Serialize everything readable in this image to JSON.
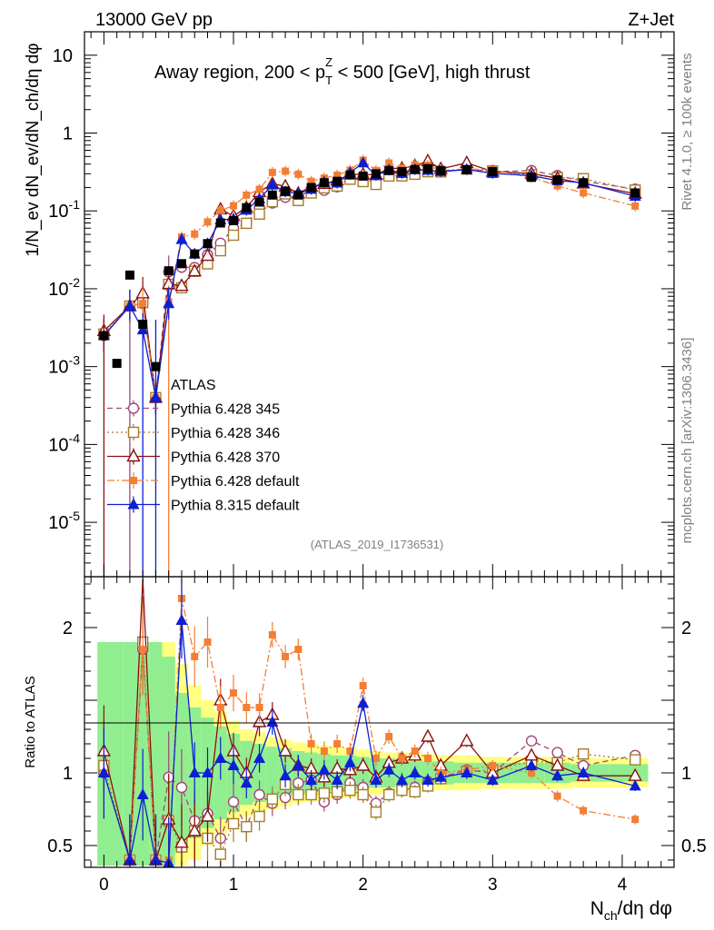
{
  "header": {
    "left": "13000 GeV pp",
    "right": "Z+Jet"
  },
  "title_parts": {
    "pre": "Away region, 200 < p",
    "sup": "Z",
    "sub": "T",
    "post": " < 500 [GeV], high thrust"
  },
  "side_text": {
    "rivet": "Rivet 4.1.0, ≥ 100k events",
    "mcplots": "mcplots.cern.ch [arXiv:1306.3436]"
  },
  "watermark": "(ATLAS_2019_I1736531)",
  "labels": {
    "upper_y": "1/N_ev dN_ev/dN_ch/dη dφ",
    "ratio_y": "Ratio to ATLAS",
    "x_main": "N",
    "x_sub": "ch",
    "x_tail": "/dη dφ"
  },
  "colors": {
    "atlas": "#000000",
    "p345": "#a0467a",
    "p346": "#a67c2a",
    "p370": "#8b1010",
    "pdef": "#f37e34",
    "p8": "#0b1fd6",
    "band_green": "#90ee90",
    "band_yellow": "#ffff80"
  },
  "chart_data": {
    "type": "scatter",
    "x_ticks": [
      "0",
      "1",
      "2",
      "3",
      "4"
    ],
    "xlim": [
      -0.15,
      4.4
    ],
    "upper": {
      "yscale": "log",
      "ylim": [
        2e-06,
        20
      ],
      "y_tick_labels": [
        "10",
        "1",
        "10^-1",
        "10^-2",
        "10^-3",
        "10^-4",
        "10^-5"
      ]
    },
    "ratio": {
      "ylim": [
        0.35,
        2.35
      ],
      "y_tick_labels": [
        "2",
        "1",
        "0.5"
      ]
    },
    "x": [
      0.0,
      0.1,
      0.2,
      0.3,
      0.4,
      0.5,
      0.6,
      0.7,
      0.8,
      0.9,
      1.0,
      1.1,
      1.2,
      1.3,
      1.4,
      1.5,
      1.6,
      1.7,
      1.8,
      1.9,
      2.0,
      2.1,
      2.2,
      2.3,
      2.4,
      2.5,
      2.6,
      2.8,
      3.0,
      3.3,
      3.5,
      3.7,
      4.1
    ],
    "atlas": [
      0.0025,
      0.0011,
      0.015,
      0.0035,
      0.001,
      0.017,
      0.021,
      0.028,
      0.038,
      0.07,
      0.075,
      0.11,
      0.13,
      0.16,
      0.18,
      0.16,
      0.2,
      0.23,
      0.24,
      0.29,
      0.28,
      0.3,
      0.33,
      0.32,
      0.34,
      0.35,
      0.33,
      0.34,
      0.32,
      0.27,
      0.25,
      0.23,
      0.17
    ],
    "band_stat": [
      0.9,
      0.9,
      0.9,
      0.9,
      0.9,
      0.8,
      0.55,
      0.45,
      0.38,
      0.32,
      0.27,
      0.22,
      0.2,
      0.18,
      0.17,
      0.15,
      0.14,
      0.13,
      0.12,
      0.12,
      0.11,
      0.1,
      0.1,
      0.09,
      0.08,
      0.08,
      0.08,
      0.07,
      0.07,
      0.07,
      0.07,
      0.06,
      0.06
    ],
    "band_total": [
      0.9,
      0.9,
      0.9,
      0.9,
      0.9,
      0.9,
      0.75,
      0.6,
      0.5,
      0.42,
      0.36,
      0.3,
      0.28,
      0.25,
      0.23,
      0.21,
      0.2,
      0.19,
      0.18,
      0.17,
      0.16,
      0.15,
      0.14,
      0.14,
      0.13,
      0.13,
      0.12,
      0.12,
      0.11,
      0.11,
      0.11,
      0.1,
      0.1
    ],
    "series": [
      {
        "key": "p345",
        "name": "Pythia 6.428 345",
        "style": "dashed",
        "marker": "circle-open",
        "ratio": [
          1.0,
          null,
          0.4,
          1.85,
          0.4,
          0.97,
          0.9,
          0.67,
          0.72,
          0.55,
          0.8,
          0.63,
          0.85,
          0.79,
          0.83,
          0.93,
          0.95,
          0.8,
          0.85,
          0.93,
          0.9,
          0.79,
          0.86,
          0.88,
          0.9,
          0.94,
          0.97,
          1.02,
          1.0,
          1.22,
          1.14,
          1.05,
          1.12
        ]
      },
      {
        "key": "p346",
        "name": "Pythia 6.428 346",
        "style": "dotted",
        "marker": "square-open",
        "ratio": [
          1.05,
          null,
          0.4,
          1.9,
          0.4,
          0.67,
          0.49,
          0.6,
          0.55,
          0.44,
          0.65,
          0.63,
          0.7,
          0.82,
          0.92,
          0.85,
          0.85,
          0.86,
          0.87,
          0.88,
          0.85,
          0.73,
          0.85,
          0.88,
          0.87,
          0.91,
          0.96,
          1.01,
          1.02,
          1.08,
          1.07,
          1.13,
          1.09
        ]
      },
      {
        "key": "p370",
        "name": "Pythia 6.428 370",
        "style": "solid",
        "marker": "triangle-open",
        "ratio": [
          1.15,
          null,
          0.4,
          2.5,
          0.4,
          0.68,
          0.52,
          0.6,
          0.7,
          1.5,
          1.15,
          1.0,
          1.35,
          1.4,
          1.15,
          1.05,
          1.03,
          0.97,
          1.03,
          1.02,
          1.05,
          0.97,
          1.07,
          1.1,
          1.12,
          1.25,
          1.05,
          1.22,
          1.0,
          1.12,
          1.05,
          0.98,
          0.98
        ]
      },
      {
        "key": "pdef",
        "name": "Pythia 6.428 default",
        "style": "dashdot",
        "marker": "square-filled",
        "ratio": [
          1.0,
          null,
          0.4,
          1.85,
          0.4,
          0.4,
          2.2,
          1.8,
          1.9,
          1.45,
          1.55,
          1.45,
          1.45,
          1.95,
          1.8,
          1.85,
          1.2,
          1.15,
          1.2,
          1.15,
          1.6,
          1.1,
          1.25,
          1.1,
          1.15,
          1.1,
          1.0,
          1.02,
          1.05,
          1.0,
          0.84,
          0.74,
          0.68
        ]
      },
      {
        "key": "p8",
        "name": "Pythia 8.315 default",
        "style": "solid",
        "marker": "triangle-filled",
        "ratio": [
          1.0,
          null,
          0.4,
          0.85,
          0.4,
          0.38,
          2.05,
          1.0,
          1.0,
          1.1,
          1.05,
          0.93,
          1.1,
          1.35,
          0.98,
          1.05,
          0.95,
          1.02,
          0.95,
          1.07,
          1.48,
          0.95,
          1.02,
          0.95,
          1.0,
          0.95,
          0.97,
          1.0,
          0.95,
          1.05,
          0.98,
          1.0,
          0.91
        ]
      }
    ],
    "legend": [
      "ATLAS",
      "Pythia 6.428 345",
      "Pythia 6.428 346",
      "Pythia 6.428 370",
      "Pythia 6.428 default",
      "Pythia 8.315 default"
    ]
  }
}
